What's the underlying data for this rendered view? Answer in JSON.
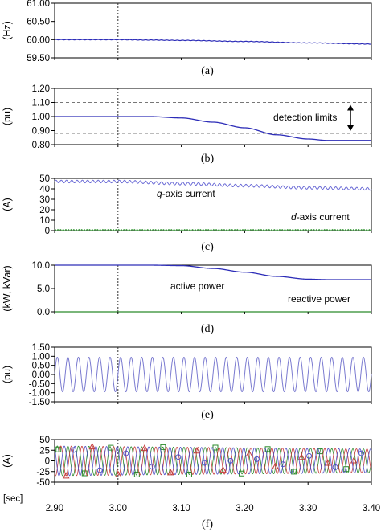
{
  "chart_data": [
    {
      "id": "a",
      "type": "line",
      "caption": "(a)",
      "ylabel": "(Hz)",
      "ylim": [
        59.5,
        61.0
      ],
      "yticks": [
        "61.00",
        "60.50",
        "60.00",
        "59.50"
      ],
      "event_time": 3.0,
      "series": [
        {
          "x": [
            2.9,
            3.0,
            3.05,
            3.1,
            3.2,
            3.3,
            3.4
          ],
          "values": [
            60.0,
            60.0,
            59.99,
            59.98,
            59.95,
            59.91,
            59.88
          ],
          "color": "#2d2db8"
        }
      ]
    },
    {
      "id": "b",
      "type": "line",
      "caption": "(b)",
      "ylabel": "(pu)",
      "ylim": [
        0.8,
        1.2
      ],
      "yticks": [
        "1.20",
        "1.10",
        "1.00",
        "0.90",
        "0.80"
      ],
      "reference_lines": [
        1.1,
        0.88
      ],
      "annotation": "detection limits",
      "event_time": 3.0,
      "series": [
        {
          "x": [
            2.9,
            3.0,
            3.05,
            3.1,
            3.15,
            3.2,
            3.25,
            3.3,
            3.33,
            3.4
          ],
          "values": [
            1.0,
            1.0,
            1.0,
            0.99,
            0.96,
            0.92,
            0.87,
            0.84,
            0.83,
            0.83
          ],
          "color": "#2d2db8"
        }
      ]
    },
    {
      "id": "c",
      "type": "line",
      "caption": "(c)",
      "ylabel": "(A)",
      "ylim": [
        0,
        50
      ],
      "yticks": [
        "50",
        "40",
        "30",
        "20",
        "10",
        "0"
      ],
      "event_time": 3.0,
      "labels": [
        {
          "italic": "q",
          "rest": "-axis current"
        },
        {
          "italic": "d",
          "rest": "-axis current"
        }
      ],
      "series": [
        {
          "x": [
            2.9,
            3.0,
            3.1,
            3.2,
            3.3,
            3.4
          ],
          "values": [
            47,
            47,
            45,
            43,
            41,
            40
          ],
          "color": "#6b6bd6"
        },
        {
          "x": [
            2.9,
            3.0,
            3.1,
            3.2,
            3.3,
            3.4
          ],
          "values": [
            0.5,
            0.5,
            0.5,
            0.5,
            0.5,
            0.5
          ],
          "color": "#4aa34a"
        }
      ]
    },
    {
      "id": "d",
      "type": "line",
      "caption": "(d)",
      "ylabel": "(kW, kVar)",
      "ylim": [
        0,
        10
      ],
      "yticks": [
        "10.0",
        "5.0",
        "0.0"
      ],
      "event_time": 3.0,
      "labels": [
        "active power",
        "reactive power"
      ],
      "series": [
        {
          "x": [
            2.9,
            3.0,
            3.05,
            3.1,
            3.15,
            3.2,
            3.25,
            3.3,
            3.33,
            3.4
          ],
          "values": [
            10,
            10,
            10,
            9.9,
            9.3,
            8.5,
            7.6,
            7.0,
            6.9,
            6.9
          ],
          "color": "#2d2db8"
        },
        {
          "x": [
            2.9,
            3.4
          ],
          "values": [
            0,
            0
          ],
          "color": "#2b8a2b"
        }
      ]
    },
    {
      "id": "e",
      "type": "line",
      "caption": "(e)",
      "ylabel": "(pu)",
      "ylim": [
        -1.5,
        1.5
      ],
      "yticks": [
        "1.50",
        "1.00",
        "0.50",
        "0.00",
        "-0.50",
        "-1.00",
        "-1.50"
      ],
      "event_time": 3.0,
      "frequency_hz": 60,
      "amplitude": 0.95,
      "series": [
        {
          "x_range": [
            2.9,
            3.4
          ],
          "color": "#7a7ad0"
        }
      ]
    },
    {
      "id": "f",
      "type": "line",
      "caption": "(f)",
      "ylabel": "(A)",
      "ylim": [
        -50,
        50
      ],
      "yticks": [
        "50",
        "25",
        "0",
        "-25",
        "-50"
      ],
      "xlabel": "[sec]",
      "xticks": [
        "2.90",
        "3.00",
        "3.10",
        "3.20",
        "3.30",
        "3.40"
      ],
      "event_time": 3.0,
      "frequency_hz": 60,
      "amplitude_start": 35,
      "amplitude_end": 28,
      "series": [
        {
          "phase_deg": 0,
          "color": "#2b8a2b"
        },
        {
          "phase_deg": -120,
          "color": "#c43b3b"
        },
        {
          "phase_deg": 120,
          "color": "#4e4ec4"
        }
      ]
    }
  ]
}
